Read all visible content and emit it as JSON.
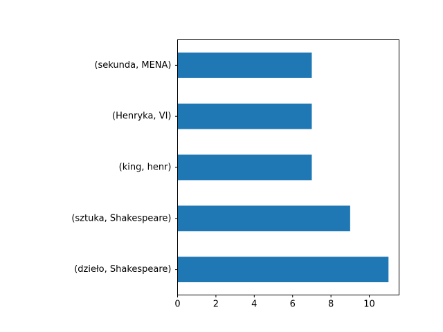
{
  "chart_data": {
    "type": "bar",
    "orientation": "horizontal",
    "categories": [
      "(dzieło, Shakespeare)",
      "(sztuka, Shakespeare)",
      "(king, henr)",
      "(Henryka, VI)",
      "(sekunda, MENA)"
    ],
    "values": [
      11,
      9,
      7,
      7,
      7
    ],
    "xlim": [
      0,
      11.55
    ],
    "x_ticks": [
      "0",
      "2",
      "4",
      "6",
      "8",
      "10"
    ],
    "colors": {
      "bar": "#1f77b4",
      "axis": "#000000"
    },
    "grid": false,
    "title": "",
    "xlabel": "",
    "ylabel": ""
  }
}
